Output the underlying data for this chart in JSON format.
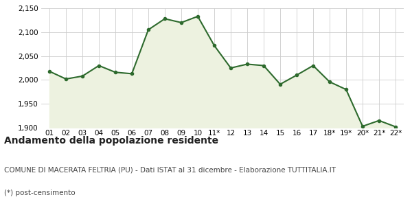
{
  "x_labels": [
    "01",
    "02",
    "03",
    "04",
    "05",
    "06",
    "07",
    "08",
    "09",
    "10",
    "11*",
    "12",
    "13",
    "14",
    "15",
    "16",
    "17",
    "18*",
    "19*",
    "20*",
    "21*",
    "22*"
  ],
  "y_values": [
    2018,
    2002,
    2008,
    2030,
    2016,
    2013,
    2105,
    2128,
    2120,
    2133,
    2072,
    2025,
    2033,
    2030,
    1991,
    2010,
    2030,
    1996,
    1980,
    1903,
    1915,
    1902
  ],
  "ylim": [
    1900,
    2150
  ],
  "yticks": [
    1900,
    1950,
    2000,
    2050,
    2100,
    2150
  ],
  "line_color": "#2d6a2d",
  "fill_color": "#edf2e0",
  "marker": "o",
  "marker_size": 3,
  "line_width": 1.5,
  "title": "Andamento della popolazione residente",
  "subtitle": "COMUNE DI MACERATA FELTRIA (PU) - Dati ISTAT al 31 dicembre - Elaborazione TUTTITALIA.IT",
  "footnote": "(*) post-censimento",
  "bg_color": "#ffffff",
  "plot_bg_color": "#ffffff",
  "grid_color": "#cccccc",
  "title_fontsize": 10,
  "subtitle_fontsize": 7.5,
  "footnote_fontsize": 7.5,
  "tick_fontsize": 7.5
}
